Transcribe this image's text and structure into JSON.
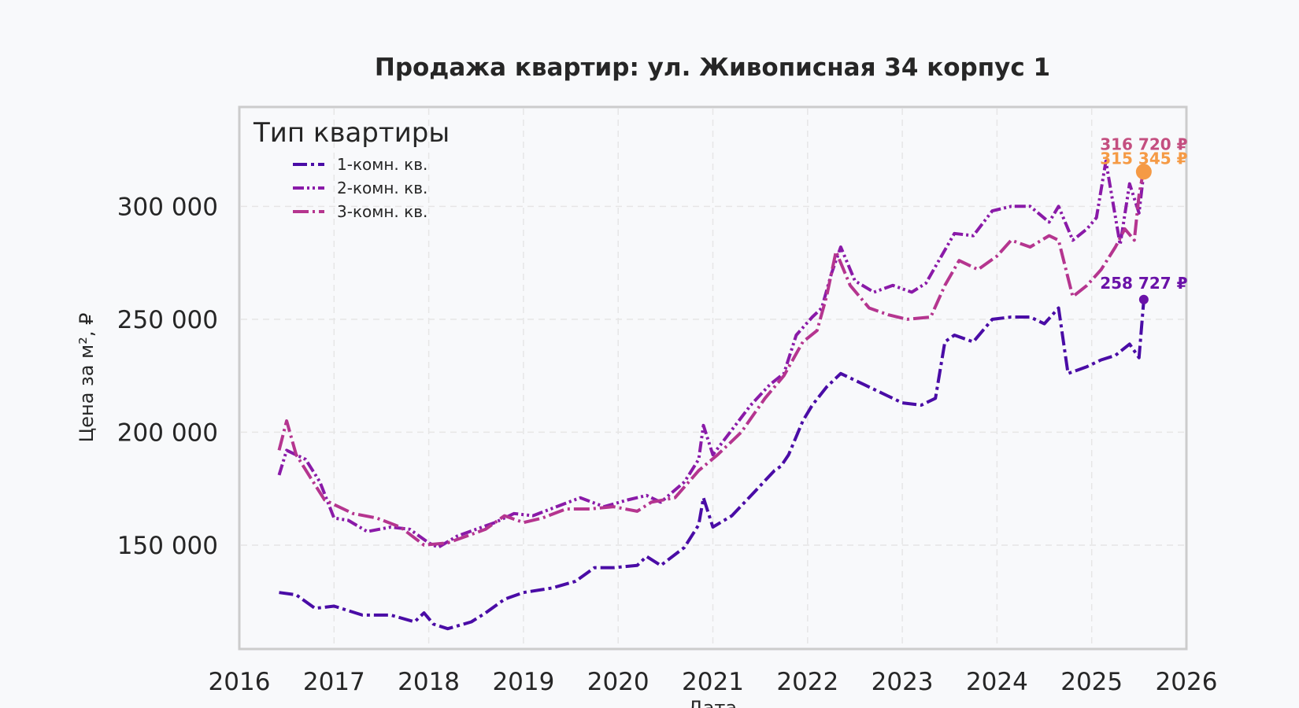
{
  "chart_data": {
    "type": "line",
    "title": "Продажа квартир: ул. Живописная 34 корпус 1",
    "xlabel": "Дата",
    "ylabel": "Цена за м², ₽",
    "xlim": [
      2016,
      2026
    ],
    "ylim": [
      104000,
      344000
    ],
    "x_ticks": [
      "2016",
      "2017",
      "2018",
      "2019",
      "2020",
      "2021",
      "2022",
      "2023",
      "2024",
      "2025",
      "2026"
    ],
    "y_ticks": [
      {
        "value": 150000,
        "label": "150 000"
      },
      {
        "value": 200000,
        "label": "200 000"
      },
      {
        "value": 250000,
        "label": "250 000"
      },
      {
        "value": 300000,
        "label": "300 000"
      }
    ],
    "grid": true,
    "legend": {
      "title": "Тип квартиры",
      "placement": "top-left"
    },
    "series": [
      {
        "name": "1-комн. кв.",
        "color": "#4a0ca6",
        "x": [
          2016.42,
          2016.6,
          2016.8,
          2017.0,
          2017.3,
          2017.6,
          2017.85,
          2017.95,
          2018.05,
          2018.2,
          2018.45,
          2018.6,
          2018.8,
          2019.0,
          2019.3,
          2019.55,
          2019.75,
          2019.95,
          2020.2,
          2020.3,
          2020.45,
          2020.7,
          2020.85,
          2020.9,
          2021.0,
          2021.2,
          2021.45,
          2021.65,
          2021.72,
          2021.8,
          2021.95,
          2022.05,
          2022.2,
          2022.35,
          2022.6,
          2022.85,
          2023.0,
          2023.2,
          2023.35,
          2023.45,
          2023.55,
          2023.75,
          2023.95,
          2024.15,
          2024.35,
          2024.5,
          2024.65,
          2024.75,
          2024.95,
          2025.1,
          2025.25,
          2025.4,
          2025.5,
          2025.55
        ],
        "values": [
          129000,
          128000,
          122000,
          123000,
          119000,
          119000,
          116000,
          120000,
          115000,
          113000,
          116000,
          120000,
          126000,
          129000,
          131000,
          134000,
          140000,
          140000,
          141000,
          145000,
          141000,
          149000,
          159000,
          171000,
          158000,
          163000,
          174000,
          183000,
          185000,
          190000,
          205000,
          212000,
          220000,
          226000,
          221000,
          216000,
          213000,
          212000,
          215000,
          240000,
          243000,
          240000,
          250000,
          251000,
          251000,
          248000,
          255000,
          226000,
          229000,
          232000,
          234000,
          239000,
          233000,
          258727
        ]
      },
      {
        "name": "2-комн. кв.",
        "color": "#8a1aa8",
        "x": [
          2016.42,
          2016.5,
          2016.7,
          2016.85,
          2017.0,
          2017.15,
          2017.35,
          2017.6,
          2017.8,
          2018.0,
          2018.1,
          2018.3,
          2018.5,
          2018.7,
          2018.9,
          2019.1,
          2019.35,
          2019.6,
          2019.85,
          2020.1,
          2020.3,
          2020.45,
          2020.7,
          2020.85,
          2020.9,
          2021.0,
          2021.2,
          2021.4,
          2021.6,
          2021.75,
          2021.88,
          2022.05,
          2022.15,
          2022.25,
          2022.35,
          2022.5,
          2022.7,
          2022.9,
          2023.1,
          2023.25,
          2023.4,
          2023.55,
          2023.75,
          2023.95,
          2024.15,
          2024.35,
          2024.55,
          2024.65,
          2024.8,
          2024.95,
          2025.05,
          2025.15,
          2025.3,
          2025.4,
          2025.5,
          2025.55
        ],
        "values": [
          181000,
          192000,
          188000,
          178000,
          162000,
          161000,
          156000,
          158000,
          157000,
          151000,
          149000,
          154000,
          157000,
          160000,
          164000,
          163000,
          167000,
          171000,
          167000,
          170000,
          172000,
          169000,
          178000,
          188000,
          203000,
          190000,
          201000,
          212000,
          221000,
          226000,
          243000,
          251000,
          255000,
          270000,
          282000,
          267000,
          262000,
          265000,
          262000,
          266000,
          277000,
          288000,
          287000,
          298000,
          300000,
          300000,
          293000,
          300000,
          285000,
          290000,
          295000,
          320000,
          283000,
          310000,
          297000,
          315345
        ]
      },
      {
        "name": "3-комн. кв.",
        "color": "#b5358f",
        "x": [
          2016.42,
          2016.5,
          2016.6,
          2016.75,
          2016.9,
          2017.0,
          2017.2,
          2017.45,
          2017.7,
          2017.95,
          2018.2,
          2018.4,
          2018.6,
          2018.8,
          2019.0,
          2019.2,
          2019.45,
          2019.7,
          2019.95,
          2020.2,
          2020.35,
          2020.6,
          2020.85,
          2021.05,
          2021.3,
          2021.55,
          2021.75,
          2021.95,
          2022.1,
          2022.2,
          2022.3,
          2022.45,
          2022.65,
          2022.85,
          2023.05,
          2023.3,
          2023.45,
          2023.6,
          2023.8,
          2024.0,
          2024.15,
          2024.35,
          2024.55,
          2024.65,
          2024.8,
          2024.95,
          2025.1,
          2025.25,
          2025.35,
          2025.45,
          2025.5,
          2025.55
        ],
        "values": [
          192000,
          205000,
          190000,
          180000,
          170000,
          168000,
          164000,
          162000,
          158000,
          150000,
          151000,
          154000,
          157000,
          163000,
          160000,
          162000,
          166000,
          166000,
          167000,
          165000,
          169000,
          171000,
          183000,
          190000,
          200000,
          215000,
          225000,
          240000,
          245000,
          260000,
          280000,
          265000,
          255000,
          252000,
          250000,
          251000,
          265000,
          276000,
          272000,
          278000,
          285000,
          282000,
          287000,
          285000,
          260000,
          265000,
          272000,
          282000,
          290000,
          285000,
          305000,
          316720
        ]
      }
    ],
    "annotations": [
      {
        "text": "316 720 ₽",
        "x": 2025.55,
        "y": 316720,
        "color": "#c44f80"
      },
      {
        "text": "315 345 ₽",
        "x": 2025.55,
        "y": 315345,
        "color": "#f59a45"
      },
      {
        "text": "258 727 ₽",
        "x": 2025.55,
        "y": 258727,
        "color": "#6a12a8"
      }
    ]
  }
}
